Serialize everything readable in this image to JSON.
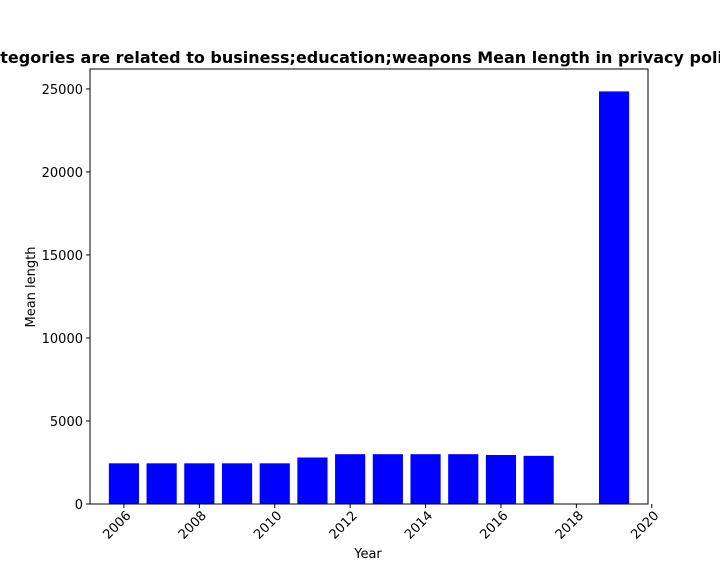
{
  "chart_data": {
    "type": "bar",
    "title": "Categories are related to business;education;weapons Mean length in privacy policies",
    "xlabel": "Year",
    "ylabel": "Mean length",
    "x": [
      2006,
      2007,
      2008,
      2009,
      2010,
      2011,
      2012,
      2013,
      2014,
      2015,
      2016,
      2017,
      2019
    ],
    "values": [
      2450,
      2450,
      2450,
      2450,
      2450,
      2800,
      3000,
      3000,
      3000,
      3000,
      2950,
      2900,
      24850
    ],
    "xlim": [
      2005.1,
      2019.9
    ],
    "ylim": [
      0,
      26200
    ],
    "xticks": [
      2006,
      2008,
      2010,
      2012,
      2014,
      2016,
      2018,
      2020
    ],
    "yticks": [
      0,
      5000,
      10000,
      15000,
      20000,
      25000
    ],
    "bar_color": "#0000ff",
    "grid": false,
    "legend": "none"
  }
}
